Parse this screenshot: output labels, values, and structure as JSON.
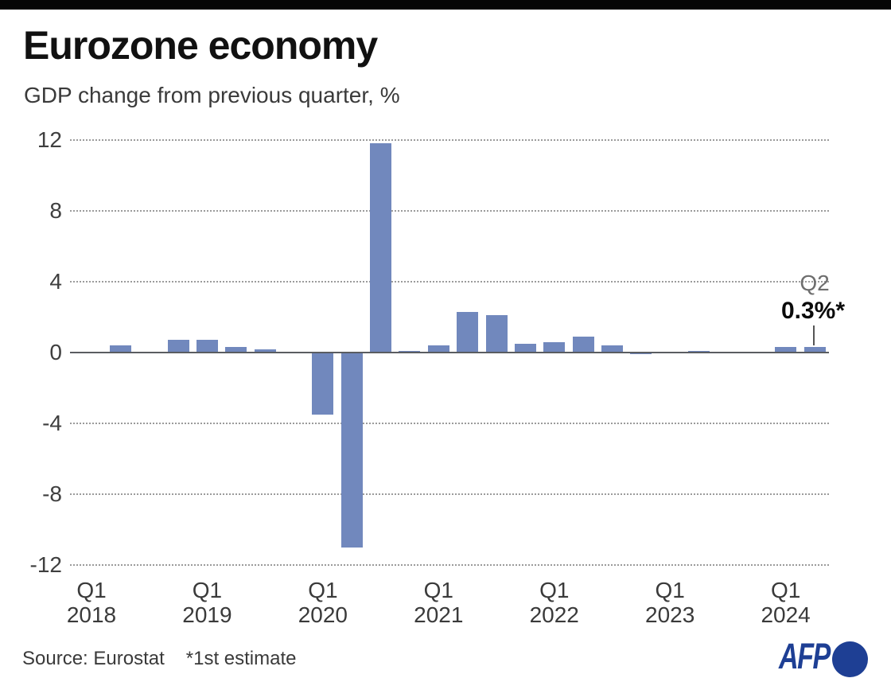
{
  "header": {
    "title": "Eurozone economy",
    "subtitle": "GDP change from previous quarter, %"
  },
  "chart_data": {
    "type": "bar",
    "title": "Eurozone economy",
    "subtitle": "GDP change from previous quarter, %",
    "unit": "%",
    "ylim": [
      -12,
      12
    ],
    "yticks": [
      12,
      8,
      4,
      0,
      -4,
      -8,
      -12
    ],
    "grid": "horizontal-dotted",
    "legend": "none",
    "quarters": [
      "Q1 2018",
      "Q2 2018",
      "Q3 2018",
      "Q4 2018",
      "Q1 2019",
      "Q2 2019",
      "Q3 2019",
      "Q4 2019",
      "Q1 2020",
      "Q2 2020",
      "Q3 2020",
      "Q4 2020",
      "Q1 2021",
      "Q2 2021",
      "Q3 2021",
      "Q4 2021",
      "Q1 2022",
      "Q2 2022",
      "Q3 2022",
      "Q4 2022",
      "Q1 2023",
      "Q2 2023",
      "Q3 2023",
      "Q4 2023",
      "Q1 2024",
      "Q2 2024"
    ],
    "values": [
      0.0,
      0.4,
      0.0,
      0.7,
      0.7,
      0.3,
      0.2,
      0.0,
      -3.5,
      -11.0,
      11.8,
      0.1,
      0.4,
      2.3,
      2.1,
      0.5,
      0.6,
      0.9,
      0.4,
      -0.1,
      0.0,
      0.1,
      0.0,
      0.0,
      0.3,
      0.3
    ],
    "x_axis": {
      "tick_label": "Q1",
      "years": [
        "2018",
        "2019",
        "2020",
        "2021",
        "2022",
        "2023",
        "2024"
      ]
    },
    "annotation": {
      "label": "Q2",
      "value": "0.3%*",
      "target": "Q2 2024"
    }
  },
  "footer": {
    "source": "Source: Eurostat",
    "note": "*1st estimate",
    "logo_text": "AFP"
  },
  "colors": {
    "bar": "#7188bd",
    "axis": "#5a5d61",
    "grid": "#9b9b9b",
    "logo_blue": "#1e3f94"
  }
}
